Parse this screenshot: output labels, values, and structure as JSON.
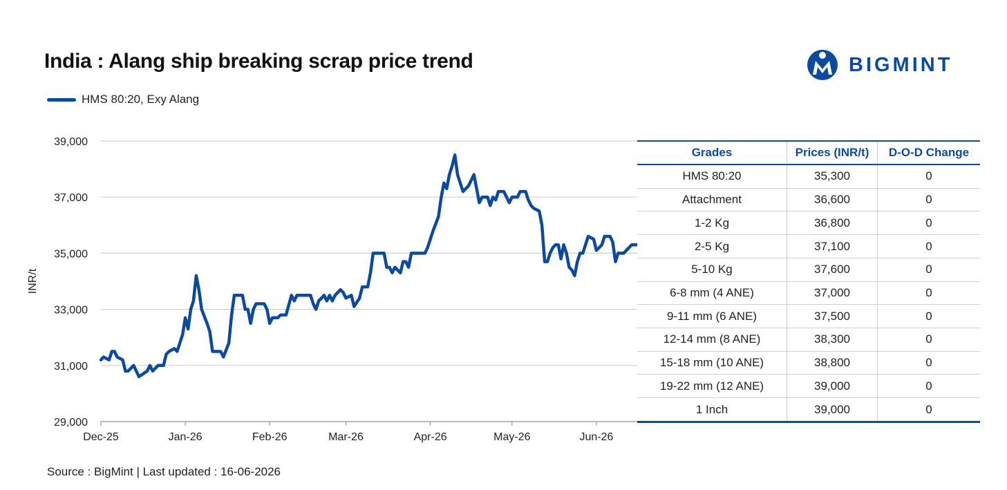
{
  "title": "India : Alang ship breaking scrap price trend",
  "brand": {
    "name": "BIGMINT",
    "color": "#0b4a9c"
  },
  "legend": {
    "label": "HMS 80:20, Exy Alang",
    "color": "#0b4a9c"
  },
  "source": "Source : BigMint | Last updated : 16-06-2026",
  "chart_data": {
    "type": "line",
    "ylabel": "INR/t",
    "ylim": [
      29000,
      39000
    ],
    "yticks": [
      "29,000",
      "31,000",
      "33,000",
      "35,000",
      "37,000",
      "39,000"
    ],
    "ytick_values": [
      29000,
      31000,
      33000,
      35000,
      37000,
      39000
    ],
    "xticks": [
      "Dec-25",
      "Jan-26",
      "Feb-26",
      "Mar-26",
      "Apr-26",
      "May-26",
      "Jun-26"
    ],
    "xtick_dates": [
      "2025-12-01",
      "2026-01-01",
      "2026-02-01",
      "2026-03-01",
      "2026-04-01",
      "2026-05-01",
      "2026-06-01"
    ],
    "xlim": [
      "2025-12-01",
      "2026-06-16"
    ],
    "grid": "horizontal",
    "legend_position": "top-left",
    "series": [
      {
        "name": "HMS 80:20, Exy Alang",
        "color": "#0b4a9c",
        "points": [
          [
            "2025-12-01",
            31200
          ],
          [
            "2025-12-02",
            31300
          ],
          [
            "2025-12-04",
            31200
          ],
          [
            "2025-12-05",
            31500
          ],
          [
            "2025-12-06",
            31500
          ],
          [
            "2025-12-07",
            31300
          ],
          [
            "2025-12-09",
            31200
          ],
          [
            "2025-12-10",
            30800
          ],
          [
            "2025-12-11",
            30800
          ],
          [
            "2025-12-13",
            31000
          ],
          [
            "2025-12-15",
            30600
          ],
          [
            "2025-12-18",
            30800
          ],
          [
            "2025-12-19",
            31000
          ],
          [
            "2025-12-20",
            30800
          ],
          [
            "2025-12-22",
            31000
          ],
          [
            "2025-12-24",
            31000
          ],
          [
            "2025-12-25",
            31400
          ],
          [
            "2025-12-26",
            31500
          ],
          [
            "2025-12-28",
            31600
          ],
          [
            "2025-12-29",
            31500
          ],
          [
            "2025-12-30",
            31800
          ],
          [
            "2025-12-31",
            32100
          ],
          [
            "2026-01-01",
            32700
          ],
          [
            "2026-01-02",
            32300
          ],
          [
            "2026-01-03",
            33000
          ],
          [
            "2026-01-04",
            33300
          ],
          [
            "2026-01-05",
            34200
          ],
          [
            "2026-01-06",
            33700
          ],
          [
            "2026-01-07",
            33000
          ],
          [
            "2026-01-09",
            32500
          ],
          [
            "2026-01-10",
            32200
          ],
          [
            "2026-01-11",
            31500
          ],
          [
            "2026-01-13",
            31500
          ],
          [
            "2026-01-14",
            31500
          ],
          [
            "2026-01-15",
            31300
          ],
          [
            "2026-01-17",
            31800
          ],
          [
            "2026-01-18",
            32800
          ],
          [
            "2026-01-19",
            33500
          ],
          [
            "2026-01-22",
            33500
          ],
          [
            "2026-01-23",
            33000
          ],
          [
            "2026-01-24",
            33000
          ],
          [
            "2026-01-25",
            32500
          ],
          [
            "2026-01-26",
            33000
          ],
          [
            "2026-01-27",
            33200
          ],
          [
            "2026-01-30",
            33200
          ],
          [
            "2026-01-31",
            33000
          ],
          [
            "2026-02-01",
            32500
          ],
          [
            "2026-02-02",
            32700
          ],
          [
            "2026-02-04",
            32700
          ],
          [
            "2026-02-05",
            32800
          ],
          [
            "2026-02-07",
            32800
          ],
          [
            "2026-02-09",
            33500
          ],
          [
            "2026-02-10",
            33300
          ],
          [
            "2026-02-11",
            33500
          ],
          [
            "2026-02-16",
            33500
          ],
          [
            "2026-02-17",
            33200
          ],
          [
            "2026-02-18",
            33000
          ],
          [
            "2026-02-19",
            33300
          ],
          [
            "2026-02-20",
            33400
          ],
          [
            "2026-02-21",
            33500
          ],
          [
            "2026-02-22",
            33300
          ],
          [
            "2026-02-23",
            33500
          ],
          [
            "2026-02-24",
            33300
          ],
          [
            "2026-02-25",
            33500
          ],
          [
            "2026-02-27",
            33700
          ],
          [
            "2026-02-28",
            33600
          ],
          [
            "2026-03-01",
            33400
          ],
          [
            "2026-03-03",
            33500
          ],
          [
            "2026-03-04",
            33100
          ],
          [
            "2026-03-06",
            33400
          ],
          [
            "2026-03-07",
            33800
          ],
          [
            "2026-03-09",
            33800
          ],
          [
            "2026-03-10",
            34300
          ],
          [
            "2026-03-11",
            35000
          ],
          [
            "2026-03-15",
            35000
          ],
          [
            "2026-03-16",
            34500
          ],
          [
            "2026-03-17",
            34500
          ],
          [
            "2026-03-18",
            34300
          ],
          [
            "2026-03-19",
            34500
          ],
          [
            "2026-03-21",
            34300
          ],
          [
            "2026-03-22",
            34700
          ],
          [
            "2026-03-23",
            34700
          ],
          [
            "2026-03-24",
            34500
          ],
          [
            "2026-03-25",
            35000
          ],
          [
            "2026-03-30",
            35000
          ],
          [
            "2026-03-31",
            35200
          ],
          [
            "2026-04-01",
            35500
          ],
          [
            "2026-04-02",
            35800
          ],
          [
            "2026-04-04",
            36300
          ],
          [
            "2026-04-05",
            37000
          ],
          [
            "2026-04-06",
            37500
          ],
          [
            "2026-04-07",
            37300
          ],
          [
            "2026-04-08",
            37800
          ],
          [
            "2026-04-09",
            38100
          ],
          [
            "2026-04-10",
            38500
          ],
          [
            "2026-04-11",
            37800
          ],
          [
            "2026-04-13",
            37200
          ],
          [
            "2026-04-15",
            37400
          ],
          [
            "2026-04-17",
            37800
          ],
          [
            "2026-04-19",
            36800
          ],
          [
            "2026-04-20",
            37000
          ],
          [
            "2026-04-22",
            37000
          ],
          [
            "2026-04-23",
            36700
          ],
          [
            "2026-04-24",
            37000
          ],
          [
            "2026-04-25",
            36900
          ],
          [
            "2026-04-26",
            37200
          ],
          [
            "2026-04-28",
            37200
          ],
          [
            "2026-04-29",
            37000
          ],
          [
            "2026-04-30",
            36800
          ],
          [
            "2026-05-01",
            37000
          ],
          [
            "2026-05-03",
            37000
          ],
          [
            "2026-05-04",
            37200
          ],
          [
            "2026-05-06",
            37200
          ],
          [
            "2026-05-07",
            36900
          ],
          [
            "2026-05-08",
            36700
          ],
          [
            "2026-05-09",
            36600
          ],
          [
            "2026-05-11",
            36500
          ],
          [
            "2026-05-12",
            36000
          ],
          [
            "2026-05-13",
            34700
          ],
          [
            "2026-05-14",
            34700
          ],
          [
            "2026-05-15",
            35000
          ],
          [
            "2026-05-16",
            35200
          ],
          [
            "2026-05-17",
            35300
          ],
          [
            "2026-05-18",
            35300
          ],
          [
            "2026-05-19",
            34800
          ],
          [
            "2026-05-20",
            35300
          ],
          [
            "2026-05-21",
            35000
          ],
          [
            "2026-05-22",
            34500
          ],
          [
            "2026-05-23",
            34400
          ],
          [
            "2026-05-24",
            34200
          ],
          [
            "2026-05-25",
            34700
          ],
          [
            "2026-05-26",
            35000
          ],
          [
            "2026-05-27",
            35000
          ],
          [
            "2026-05-29",
            35600
          ],
          [
            "2026-05-31",
            35500
          ],
          [
            "2026-06-01",
            35100
          ],
          [
            "2026-06-02",
            35200
          ],
          [
            "2026-06-03",
            35300
          ],
          [
            "2026-06-04",
            35600
          ],
          [
            "2026-06-06",
            35600
          ],
          [
            "2026-06-07",
            35400
          ],
          [
            "2026-06-08",
            34700
          ],
          [
            "2026-06-09",
            35000
          ],
          [
            "2026-06-11",
            35000
          ],
          [
            "2026-06-12",
            35100
          ],
          [
            "2026-06-14",
            35300
          ],
          [
            "2026-06-16",
            35300
          ]
        ]
      }
    ]
  },
  "table": {
    "headers": [
      "Grades",
      "Prices (INR/t)",
      "D-O-D Change"
    ],
    "rows": [
      [
        "HMS 80:20",
        "35,300",
        "0"
      ],
      [
        "Attachment",
        "36,600",
        "0"
      ],
      [
        "1-2 Kg",
        "36,800",
        "0"
      ],
      [
        "2-5 Kg",
        "37,100",
        "0"
      ],
      [
        "5-10 Kg",
        "37,600",
        "0"
      ],
      [
        "6-8 mm (4 ANE)",
        "37,000",
        "0"
      ],
      [
        "9-11 mm (6 ANE)",
        "37,500",
        "0"
      ],
      [
        "12-14 mm (8 ANE)",
        "38,300",
        "0"
      ],
      [
        "15-18 mm (10 ANE)",
        "38,800",
        "0"
      ],
      [
        "19-22 mm (12 ANE)",
        "39,000",
        "0"
      ],
      [
        "1 Inch",
        "39,000",
        "0"
      ]
    ]
  }
}
